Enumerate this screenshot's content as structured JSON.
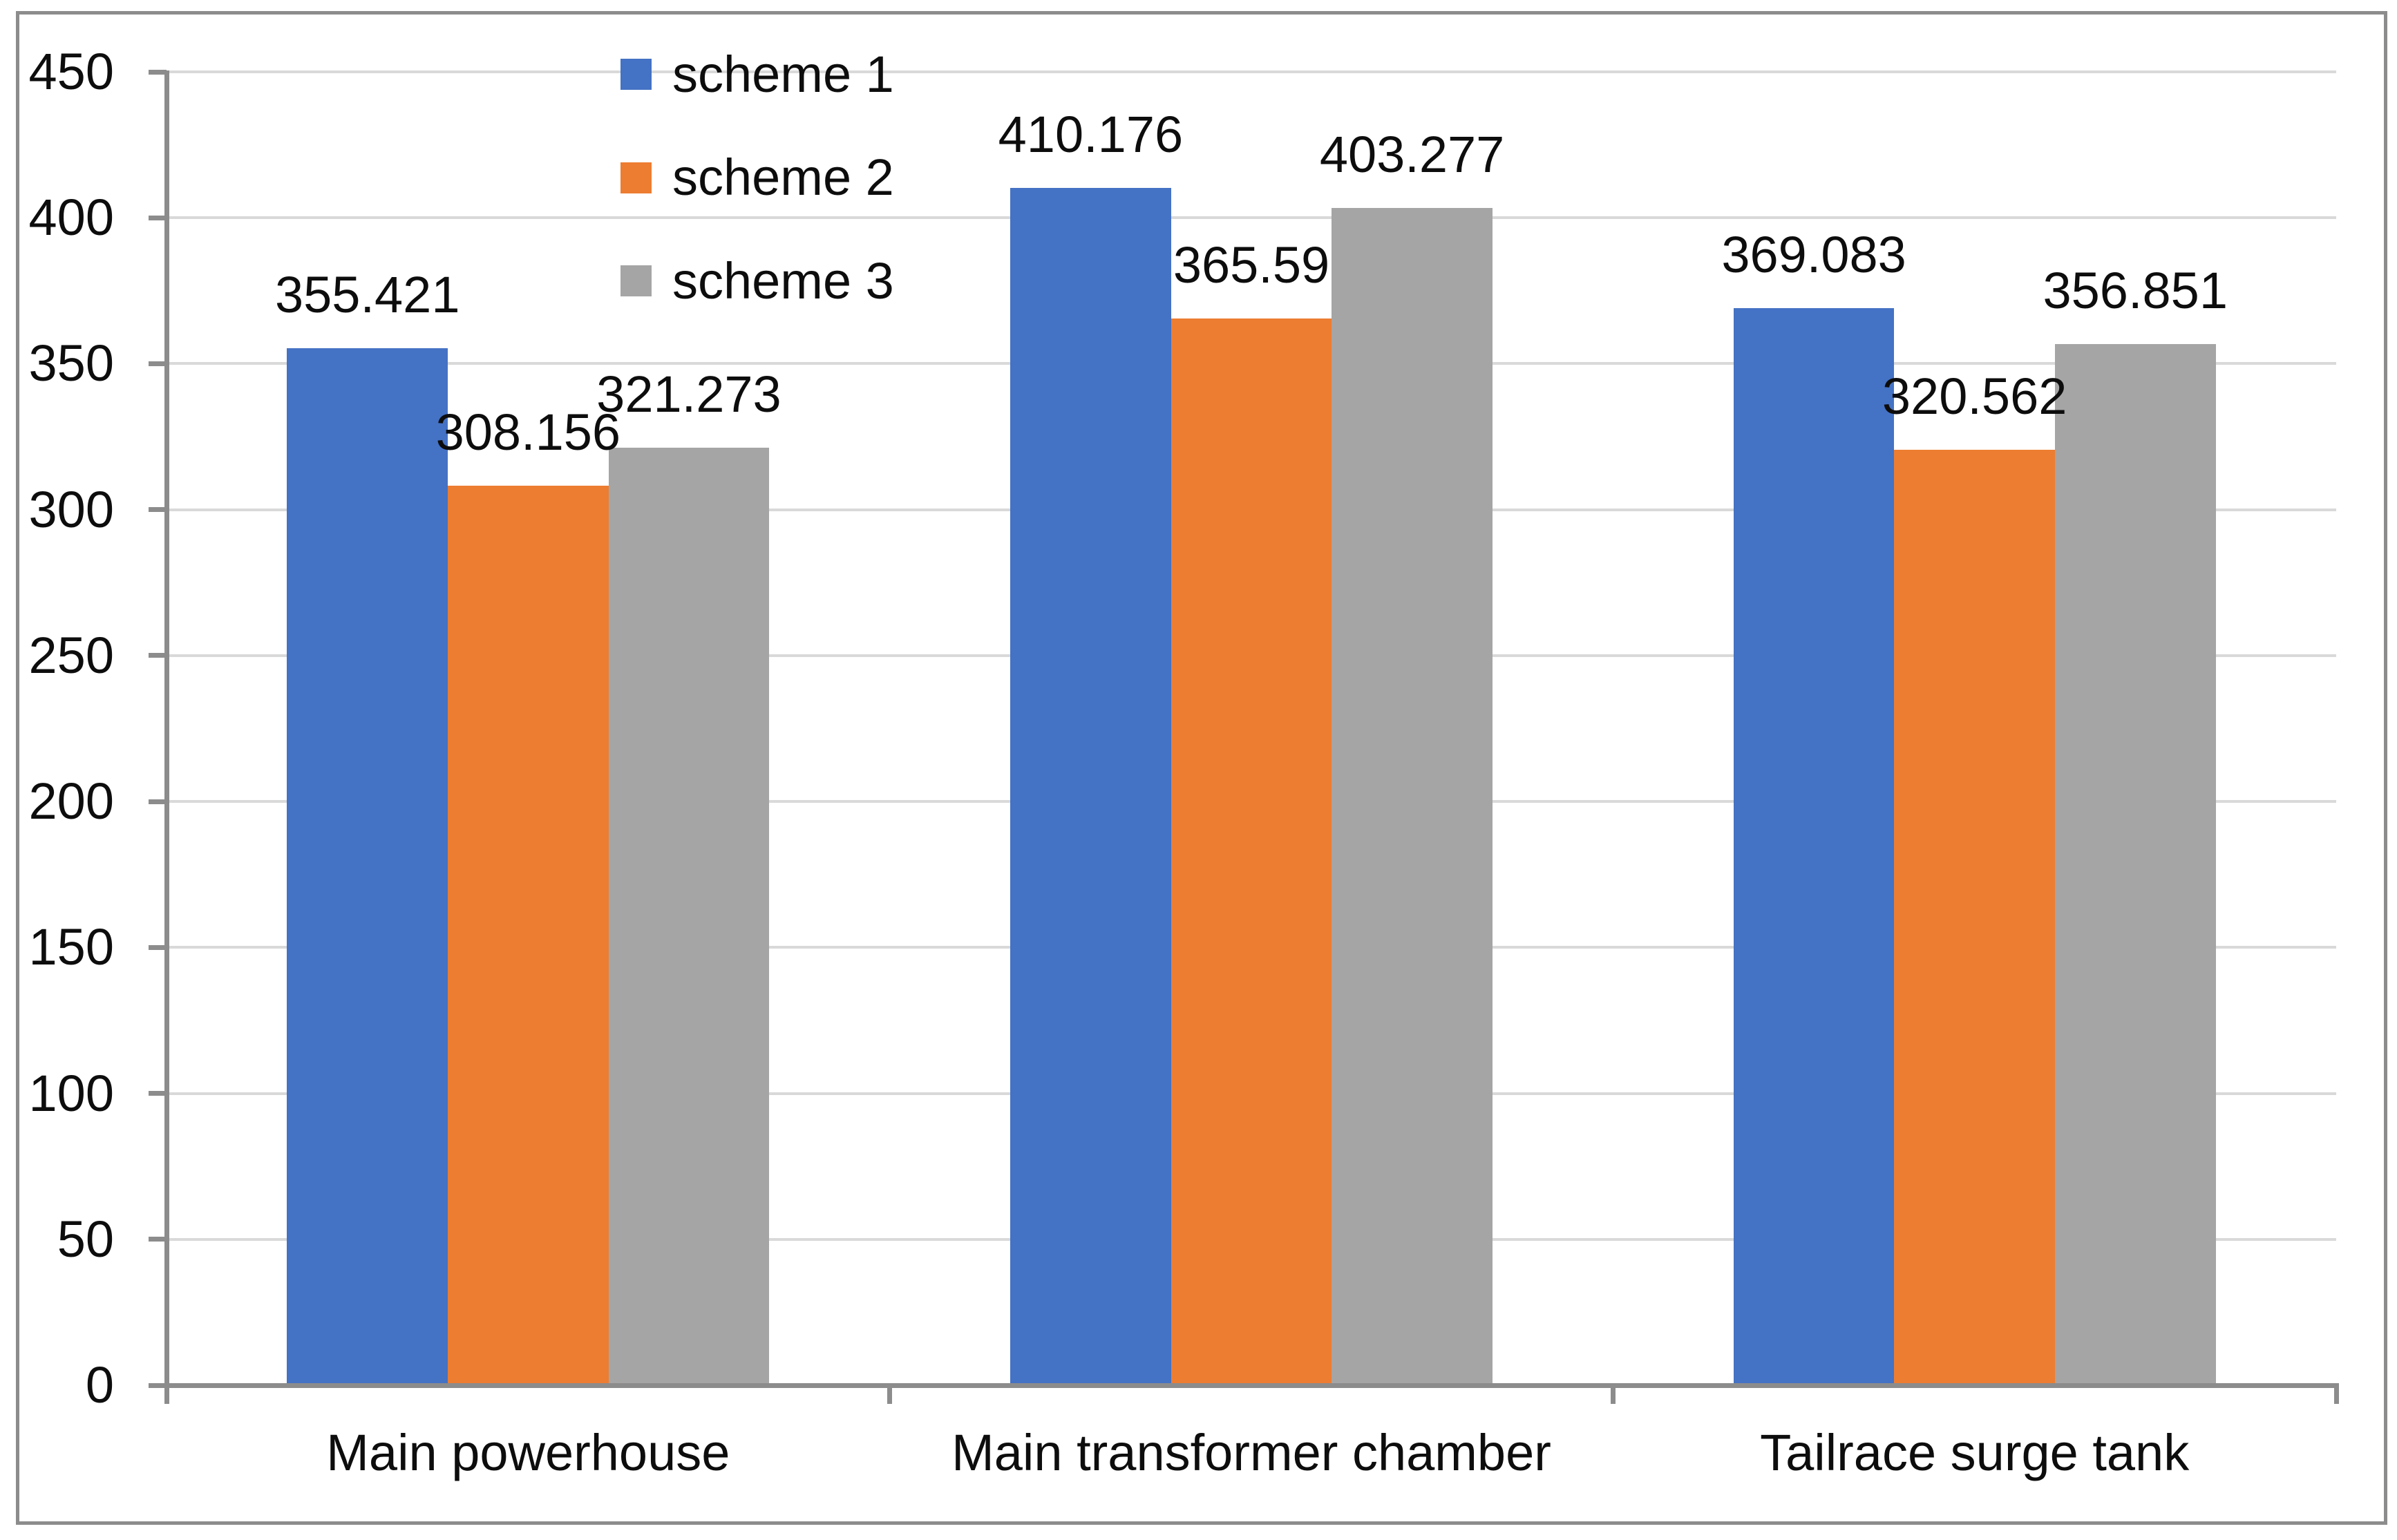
{
  "chart_data": {
    "type": "bar",
    "title": "",
    "xlabel": "",
    "ylabel": "",
    "categories": [
      "Main powerhouse",
      "Main transformer chamber",
      "Tailrace surge tank"
    ],
    "series": [
      {
        "name": "scheme 1",
        "color": "#4472C4",
        "values": [
          355.421,
          410.176,
          369.083
        ]
      },
      {
        "name": "scheme 2",
        "color": "#ED7D31",
        "values": [
          308.156,
          365.59,
          320.562
        ]
      },
      {
        "name": "scheme 3",
        "color": "#A5A5A5",
        "values": [
          321.273,
          403.277,
          356.851
        ]
      }
    ],
    "ylim": [
      0,
      450
    ],
    "ytick_interval": 50,
    "yticks": [
      0,
      50,
      100,
      150,
      200,
      250,
      300,
      350,
      400,
      450
    ],
    "grid": true,
    "data_labels": true,
    "legend_position": "top-center, vertical stack",
    "bar_gap_width_percent": 150,
    "axis_color": "#8C8C8C",
    "gridline_color": "#D9D9D9",
    "text_color": "#0D0D0D",
    "background_color": "#FFFFFF"
  }
}
